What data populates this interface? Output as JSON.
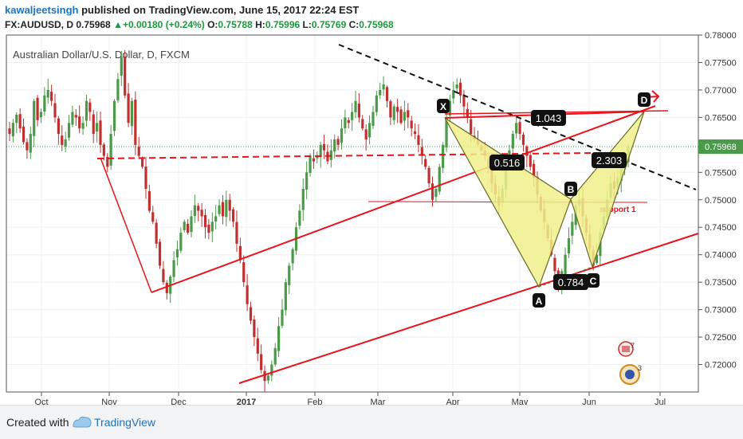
{
  "header": {
    "author": "kawaljeetsingh",
    "published": "published on TradingView.com, June 15, 2017 22:24 EST",
    "symbol": "FX:AUDUSD, D",
    "last": "0.75968",
    "change": "+0.00180 (+0.24%)",
    "open_label": "O:",
    "open": "0.75788",
    "high_label": "H:",
    "high": "0.75996",
    "low_label": "L:",
    "low": "0.75769",
    "close_label": "C:",
    "close": "0.75968"
  },
  "footer": {
    "created_with": "Created with",
    "brand": "TradingView"
  },
  "colors": {
    "up": "#4a9a4a",
    "down": "#c03030",
    "trend": "#e8141c",
    "pattern_fill": "#eef08a",
    "accent": "#1e73be"
  },
  "chart_data": {
    "type": "candlestick",
    "title": "Australian Dollar/U.S. Dollar, D, FXCM",
    "y_ticks": [
      "0.78000",
      "0.77500",
      "0.77000",
      "0.76500",
      "0.76000",
      "0.75500",
      "0.75000",
      "0.74500",
      "0.74000",
      "0.73500",
      "0.73000",
      "0.72500",
      "0.72000"
    ],
    "ylim": [
      0.715,
      0.78
    ],
    "x_ticks": [
      "Oct",
      "Nov",
      "Dec",
      "2017",
      "Feb",
      "Mar",
      "Apr",
      "May",
      "Jun",
      "Jul"
    ],
    "current_price_label": "0.75968",
    "current_price": 0.75968,
    "grid": true,
    "pattern_points": [
      "X",
      "A",
      "B",
      "C",
      "D"
    ],
    "ratios": [
      "0.516",
      "0.784",
      "2.303",
      "1.043"
    ],
    "annotation": "support 1",
    "close_path": [
      0.762,
      0.764,
      0.7655,
      0.763,
      0.7605,
      0.759,
      0.762,
      0.768,
      0.7645,
      0.766,
      0.769,
      0.77,
      0.768,
      0.765,
      0.762,
      0.76,
      0.761,
      0.764,
      0.766,
      0.765,
      0.763,
      0.764,
      0.768,
      0.766,
      0.762,
      0.764,
      0.76,
      0.758,
      0.756,
      0.762,
      0.768,
      0.772,
      0.776,
      0.769,
      0.764,
      0.768,
      0.76,
      0.758,
      0.756,
      0.752,
      0.748,
      0.746,
      0.742,
      0.738,
      0.735,
      0.733,
      0.736,
      0.739,
      0.741,
      0.744,
      0.746,
      0.744,
      0.747,
      0.749,
      0.748,
      0.747,
      0.745,
      0.744,
      0.746,
      0.747,
      0.749,
      0.747,
      0.75,
      0.748,
      0.746,
      0.742,
      0.739,
      0.735,
      0.731,
      0.728,
      0.725,
      0.722,
      0.719,
      0.717,
      0.718,
      0.72,
      0.723,
      0.727,
      0.73,
      0.735,
      0.738,
      0.741,
      0.745,
      0.748,
      0.752,
      0.755,
      0.758,
      0.757,
      0.758,
      0.76,
      0.759,
      0.757,
      0.759,
      0.761,
      0.76,
      0.763,
      0.765,
      0.764,
      0.766,
      0.768,
      0.765,
      0.763,
      0.761,
      0.764,
      0.766,
      0.769,
      0.77,
      0.771,
      0.768,
      0.765,
      0.767,
      0.766,
      0.764,
      0.766,
      0.765,
      0.763,
      0.762,
      0.76,
      0.758,
      0.756,
      0.753,
      0.75,
      0.752,
      0.756,
      0.76,
      0.765,
      0.768,
      0.77,
      0.771,
      0.769,
      0.767,
      0.765,
      0.762,
      0.761,
      0.76,
      0.759,
      0.758,
      0.756,
      0.753,
      0.751,
      0.749,
      0.752,
      0.756,
      0.759,
      0.762,
      0.764,
      0.762,
      0.76,
      0.758,
      0.756,
      0.754,
      0.751,
      0.748,
      0.746,
      0.743,
      0.74,
      0.737,
      0.734,
      0.737,
      0.74,
      0.743,
      0.746,
      0.749,
      0.75,
      0.747,
      0.744,
      0.741,
      0.738,
      0.74,
      0.744,
      0.747,
      0.75,
      0.753,
      0.752,
      0.754,
      0.756,
      0.757,
      0.7597
    ]
  }
}
